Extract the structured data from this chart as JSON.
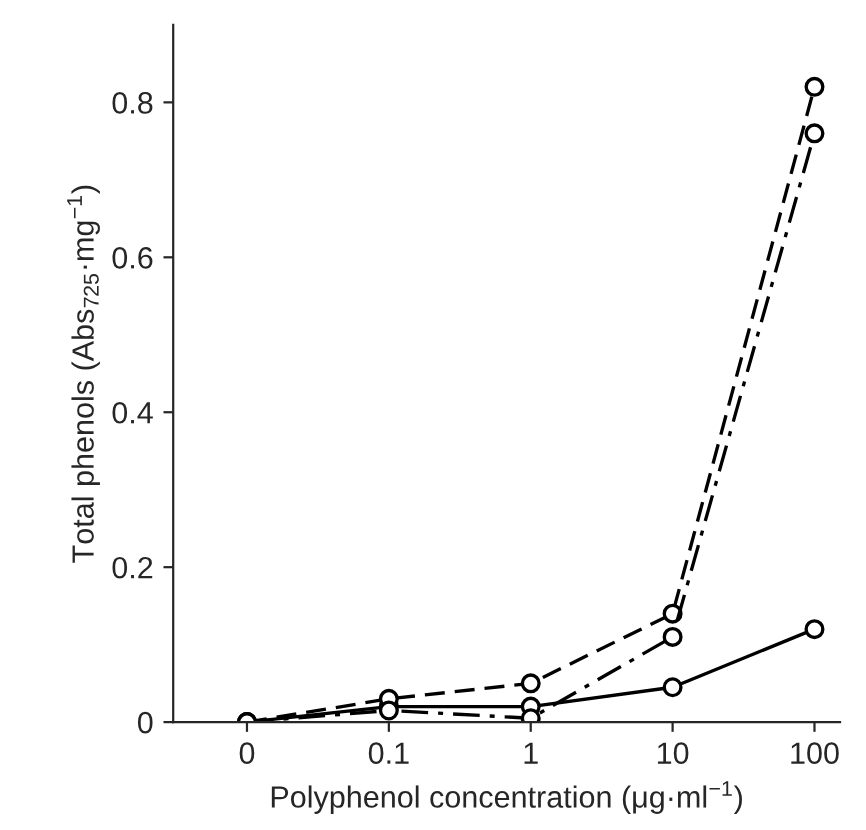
{
  "chart_data": {
    "type": "line",
    "xlabel": "Polyphenol concentration (μg·ml$^{−1}$)",
    "ylabel": "Total phenols (Abs$_{725}$·mg$^{−1}$)",
    "categories": [
      "0",
      "0.1",
      "1",
      "10",
      "100"
    ],
    "series": [
      {
        "color": "#000000",
        "line_style": "solid",
        "values": [
          0.0,
          0.02,
          0.02,
          0.045,
          0.12
        ]
      },
      {
        "color": "#000000",
        "line_style": "dashed",
        "values": [
          0.0,
          0.03,
          0.05,
          0.14,
          0.82
        ]
      },
      {
        "color": "#000000",
        "line_style": "dashdot",
        "values": [
          0.0,
          0.015,
          0.005,
          0.11,
          0.76
        ]
      }
    ],
    "marker": "circle",
    "ylim": [
      0,
      0.9
    ],
    "yticks": [
      0,
      0.2,
      0.4,
      0.6,
      0.8
    ],
    "grid": false
  }
}
